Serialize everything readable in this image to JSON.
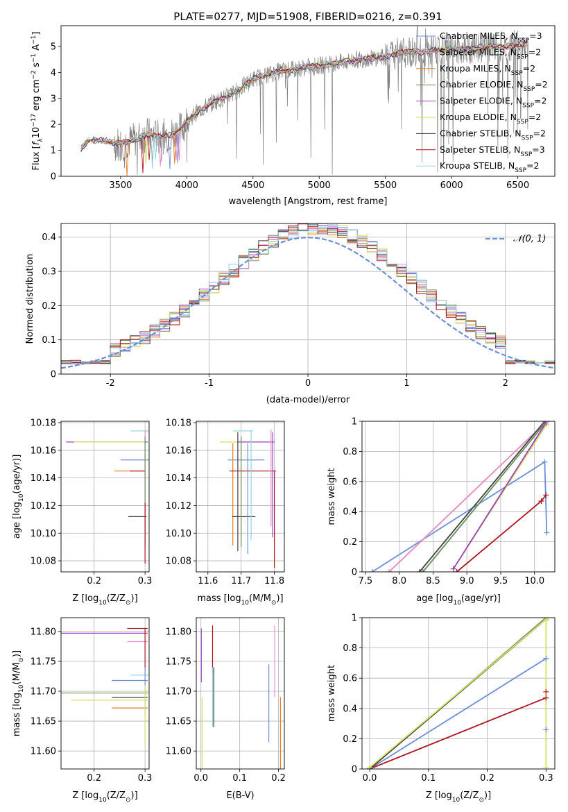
{
  "figure": {
    "title": "PLATE=0277, MJD=51908, FIBERID=0216, z=0.391"
  },
  "colors": {
    "Chabrier MILES": "#6a8fd6",
    "Salpeter MILES": "#e88fcf",
    "Kroupa MILES": "#e87d1e",
    "Chabrier ELODIE": "#6b8f5a",
    "Salpeter ELODIE": "#9b3fc4",
    "Kroupa ELODIE": "#d4e25a",
    "Chabrier STELIB": "#404040",
    "Salpeter STELIB": "#b0141c",
    "Kroupa STELIB": "#8fd6e2",
    "data": "#808080",
    "normal": "#6a8fd6"
  },
  "chart_data": [
    {
      "id": "spectrum",
      "type": "line",
      "title": "PLATE=0277, MJD=51908, FIBERID=0216, z=0.391",
      "xlabel": "wavelength [Angstrom, rest frame]",
      "ylabel_parts": [
        "Flux [",
        "f",
        "λ",
        "10",
        "−17",
        " erg cm",
        "−2",
        " s",
        "−1",
        " A",
        "−1",
        "]"
      ],
      "xlim": [
        3050,
        6780
      ],
      "ylim": [
        0,
        5.8
      ],
      "xticks": [
        3500,
        4000,
        4500,
        5000,
        5500,
        6000,
        6500
      ],
      "yticks": [
        0,
        1,
        2,
        3,
        4,
        5
      ],
      "grid": false,
      "legend": "top-right",
      "legend_entries": [
        {
          "label": "Chabrier MILES, N",
          "sub": "SSP",
          "suffix": "=3"
        },
        {
          "label": "Salpeter MILES, N",
          "sub": "SSP",
          "suffix": "=2"
        },
        {
          "label": "Kroupa MILES, N",
          "sub": "SSP",
          "suffix": "=2"
        },
        {
          "label": "Chabrier ELODIE, N",
          "sub": "SSP",
          "suffix": "=2"
        },
        {
          "label": "Salpeter ELODIE, N",
          "sub": "SSP",
          "suffix": "=2"
        },
        {
          "label": "Kroupa ELODIE, N",
          "sub": "SSP",
          "suffix": "=2"
        },
        {
          "label": "Chabrier STELIB, N",
          "sub": "SSP",
          "suffix": "=2"
        },
        {
          "label": "Salpeter STELIB, N",
          "sub": "SSP",
          "suffix": "=3"
        },
        {
          "label": "Kroupa STELIB, N",
          "sub": "SSP",
          "suffix": "=2"
        }
      ],
      "data_range": [
        3200,
        6580
      ],
      "continuum": [
        [
          3200,
          1.05
        ],
        [
          3250,
          1.35
        ],
        [
          3300,
          1.4
        ],
        [
          3400,
          1.35
        ],
        [
          3500,
          1.25
        ],
        [
          3600,
          1.4
        ],
        [
          3700,
          1.6
        ],
        [
          3800,
          1.5
        ],
        [
          3900,
          1.65
        ],
        [
          3950,
          1.8
        ],
        [
          4000,
          2.15
        ],
        [
          4100,
          2.55
        ],
        [
          4200,
          2.85
        ],
        [
          4300,
          3.05
        ],
        [
          4400,
          3.35
        ],
        [
          4500,
          3.75
        ],
        [
          4600,
          3.9
        ],
        [
          4700,
          4.05
        ],
        [
          4800,
          4.1
        ],
        [
          4900,
          4.2
        ],
        [
          5000,
          4.25
        ],
        [
          5100,
          4.35
        ],
        [
          5200,
          4.4
        ],
        [
          5300,
          4.5
        ],
        [
          5400,
          4.55
        ],
        [
          5500,
          4.6
        ],
        [
          5600,
          4.75
        ],
        [
          5700,
          4.8
        ],
        [
          5800,
          4.8
        ],
        [
          5900,
          4.85
        ],
        [
          6000,
          4.9
        ],
        [
          6100,
          4.9
        ],
        [
          6200,
          4.95
        ],
        [
          6300,
          5.0
        ],
        [
          6400,
          5.0
        ],
        [
          6500,
          5.05
        ],
        [
          6580,
          5.05
        ]
      ]
    },
    {
      "id": "residuals",
      "type": "histogram",
      "xlabel": "(data-model)/error",
      "ylabel": "Normed distribution",
      "xlim": [
        -2.5,
        2.5
      ],
      "ylim": [
        0,
        0.44
      ],
      "xticks": [
        -2,
        -1,
        0,
        1,
        2
      ],
      "yticks": [
        0.0,
        0.1,
        0.2,
        0.3,
        0.4
      ],
      "grid": true,
      "legend": "top-right",
      "legend_label": "𝒩(0, 1)",
      "bin_width": 0.1
    },
    {
      "id": "Z-age",
      "type": "errorbar",
      "xlabel_parts": [
        "Z [log",
        "10",
        "(Z/Z",
        "⊙",
        ")]"
      ],
      "ylabel_parts": [
        "age  [log",
        "10",
        "(age/yr)]"
      ],
      "xlim": [
        0.135,
        0.308
      ],
      "ylim": [
        10.072,
        10.181
      ],
      "xticks": [
        0.2,
        0.3
      ],
      "yticks": [
        10.08,
        10.1,
        10.12,
        10.14,
        10.16,
        10.18
      ],
      "yfmt": 2,
      "grid": true,
      "points": [
        {
          "series": "Salpeter ELODIE",
          "x": 0.225,
          "xerr": 0.08,
          "y": 10.166,
          "yerr": 0
        },
        {
          "series": "Kroupa ELODIE",
          "x": 0.23,
          "xerr": 0.07,
          "y": 10.166,
          "yerr": 0
        },
        {
          "series": "Kroupa STELIB",
          "x": 0.29,
          "xerr": 0.018,
          "y": 10.174,
          "yerr": 0
        },
        {
          "series": "Chabrier MILES",
          "x": 0.28,
          "xerr": 0.028,
          "y": 10.153,
          "yerr": 0
        },
        {
          "series": "Kroupa MILES",
          "x": 0.27,
          "xerr": 0.03,
          "y": 10.145,
          "yerr": 0
        },
        {
          "series": "Salpeter STELIB",
          "x": 0.285,
          "xerr": 0.015,
          "y": 10.145,
          "yerr": 0
        },
        {
          "series": "Chabrier STELIB",
          "x": 0.285,
          "xerr": 0.018,
          "y": 10.112,
          "yerr": 0
        },
        {
          "series": "Salpeter MILES",
          "x": 0.3,
          "xerr": 0,
          "y": 10.14,
          "yerr": 0.035
        },
        {
          "series": "Chabrier ELODIE",
          "x": 0.3,
          "xerr": 0,
          "y": 10.13,
          "yerr": 0.04
        },
        {
          "series": "Salpeter STELIB",
          "x": 0.3,
          "xerr": 0,
          "y": 10.1,
          "yerr": 0.022
        }
      ]
    },
    {
      "id": "mass-age",
      "type": "errorbar",
      "xlabel_parts": [
        "mass [log",
        "10",
        "(M/M",
        "⊙",
        ")]"
      ],
      "ylabel_parts": [],
      "xlim": [
        11.565,
        11.83
      ],
      "ylim": [
        10.072,
        10.181
      ],
      "xticks": [
        11.6,
        11.7,
        11.8
      ],
      "yticks": [
        10.08,
        10.1,
        10.12,
        10.14,
        10.16,
        10.18
      ],
      "yfmt": 2,
      "grid": true,
      "points": [
        {
          "series": "Kroupa ELODIE",
          "x": 11.685,
          "xerr": 0.05,
          "y": 10.166,
          "yerr": 0
        },
        {
          "series": "Salpeter ELODIE",
          "x": 11.745,
          "xerr": 0.055,
          "y": 10.166,
          "yerr": 0
        },
        {
          "series": "Kroupa STELIB",
          "x": 11.705,
          "xerr": 0.03,
          "y": 10.174,
          "yerr": 0
        },
        {
          "series": "Chabrier MILES",
          "x": 11.715,
          "xerr": 0.055,
          "y": 10.153,
          "yerr": 0
        },
        {
          "series": "Kroupa MILES",
          "x": 11.675,
          "xerr": 0,
          "y": 10.128,
          "yerr": 0.037
        },
        {
          "series": "Salpeter STELIB",
          "x": 11.735,
          "xerr": 0.07,
          "y": 10.145,
          "yerr": 0
        },
        {
          "series": "Chabrier STELIB",
          "x": 11.708,
          "xerr": 0.035,
          "y": 10.112,
          "yerr": 0
        },
        {
          "series": "Chabrier STELIB",
          "x": 11.69,
          "xerr": 0,
          "y": 10.13,
          "yerr": 0.043
        },
        {
          "series": "Chabrier ELODIE",
          "x": 11.7,
          "xerr": 0,
          "y": 10.13,
          "yerr": 0.04
        },
        {
          "series": "Chabrier MILES",
          "x": 11.72,
          "xerr": 0,
          "y": 10.125,
          "yerr": 0.04
        },
        {
          "series": "Kroupa STELIB",
          "x": 11.73,
          "xerr": 0,
          "y": 10.135,
          "yerr": 0.04
        },
        {
          "series": "Salpeter MILES",
          "x": 11.79,
          "xerr": 0,
          "y": 10.14,
          "yerr": 0.035
        },
        {
          "series": "Salpeter ELODIE",
          "x": 11.795,
          "xerr": 0,
          "y": 10.135,
          "yerr": 0.038
        },
        {
          "series": "Salpeter STELIB",
          "x": 11.8,
          "xerr": 0,
          "y": 10.11,
          "yerr": 0.035
        }
      ]
    },
    {
      "id": "age-weight",
      "type": "line",
      "xlabel_parts": [
        "age  [log",
        "10",
        "(age/yr)]"
      ],
      "ylabel": "mass weight",
      "xlim": [
        7.45,
        10.3
      ],
      "ylim": [
        0,
        1
      ],
      "xticks": [
        7.5,
        8.0,
        8.5,
        9.0,
        9.5,
        10.0
      ],
      "yticks": [
        0.0,
        0.2,
        0.4,
        0.6,
        0.8,
        1.0
      ],
      "xfmt": 1,
      "grid": true,
      "lines": [
        {
          "series": "Chabrier MILES",
          "points": [
            [
              7.6,
              0
            ],
            [
              10.15,
              0.73
            ],
            [
              10.18,
              0.26
            ]
          ]
        },
        {
          "series": "Kroupa MILES",
          "points": [
            [
              7.85,
              0
            ],
            [
              10.18,
              1.0
            ]
          ]
        },
        {
          "series": "Salpeter MILES",
          "points": [
            [
              7.85,
              0
            ],
            [
              10.18,
              1.0
            ]
          ]
        },
        {
          "series": "Chabrier STELIB",
          "points": [
            [
              8.3,
              0
            ],
            [
              10.15,
              1.0
            ]
          ]
        },
        {
          "series": "Kroupa STELIB",
          "points": [
            [
              8.35,
              0
            ],
            [
              10.18,
              1.0
            ]
          ]
        },
        {
          "series": "Chabrier ELODIE",
          "points": [
            [
              8.35,
              0
            ],
            [
              10.18,
              1.0
            ]
          ]
        },
        {
          "series": "Salpeter STELIB",
          "points": [
            [
              8.85,
              0
            ],
            [
              10.1,
              0.47
            ],
            [
              10.17,
              0.51
            ]
          ]
        },
        {
          "series": "Kroupa ELODIE",
          "points": [
            [
              8.8,
              0.02
            ],
            [
              10.18,
              0.98
            ]
          ]
        },
        {
          "series": "Salpeter ELODIE",
          "points": [
            [
              8.8,
              0.02
            ],
            [
              10.17,
              0.99
            ]
          ]
        }
      ]
    },
    {
      "id": "Z-mass",
      "type": "errorbar",
      "xlabel_parts": [
        "Z [log",
        "10",
        "(Z/Z",
        "⊙",
        ")]"
      ],
      "ylabel_parts": [
        "mass [log",
        "10",
        "(M/M",
        "⊙",
        ")]"
      ],
      "xlim": [
        0.135,
        0.308
      ],
      "ylim": [
        11.57,
        11.823
      ],
      "xticks": [
        0.2,
        0.3
      ],
      "yticks": [
        11.6,
        11.65,
        11.7,
        11.75,
        11.8
      ],
      "yfmt": 2,
      "grid": true,
      "points": [
        {
          "series": "Salpeter ELODIE",
          "x": 0.22,
          "xerr": 0.085,
          "y": 11.797,
          "yerr": 0
        },
        {
          "series": "Salpeter STELIB",
          "x": 0.285,
          "xerr": 0.02,
          "y": 11.805,
          "yerr": 0
        },
        {
          "series": "Salpeter MILES",
          "x": 0.285,
          "xerr": 0.02,
          "y": 11.783,
          "yerr": 0
        },
        {
          "series": "Kroupa STELIB",
          "x": 0.29,
          "xerr": 0.018,
          "y": 11.727,
          "yerr": 0
        },
        {
          "series": "Chabrier MILES",
          "x": 0.27,
          "xerr": 0.035,
          "y": 11.718,
          "yerr": 0
        },
        {
          "series": "Chabrier ELODIE",
          "x": 0.22,
          "xerr": 0.085,
          "y": 11.697,
          "yerr": 0
        },
        {
          "series": "Chabrier STELIB",
          "x": 0.27,
          "xerr": 0.035,
          "y": 11.69,
          "yerr": 0
        },
        {
          "series": "Kroupa ELODIE",
          "x": 0.23,
          "xerr": 0.075,
          "y": 11.685,
          "yerr": 0
        },
        {
          "series": "Kroupa MILES",
          "x": 0.27,
          "xerr": 0.035,
          "y": 11.672,
          "yerr": 0
        },
        {
          "series": "Salpeter STELIB",
          "x": 0.3,
          "xerr": 0,
          "y": 11.77,
          "yerr": 0.035
        },
        {
          "series": "Chabrier MILES",
          "x": 0.3,
          "xerr": 0,
          "y": 11.7,
          "yerr": 0.04
        },
        {
          "series": "Kroupa ELODIE",
          "x": 0.3,
          "xerr": 0,
          "y": 11.66,
          "yerr": 0.05
        }
      ]
    },
    {
      "id": "ebv-mass",
      "type": "errorbar",
      "xlabel": "E(B-V)",
      "ylabel_parts": [],
      "xlim": [
        -0.012,
        0.215
      ],
      "ylim": [
        11.57,
        11.823
      ],
      "xticks": [
        0.0,
        0.1,
        0.2
      ],
      "yticks": [
        11.6,
        11.65,
        11.7,
        11.75,
        11.8
      ],
      "xfmt": 1,
      "yfmt": 2,
      "grid": true,
      "points": [
        {
          "series": "Salpeter ELODIE",
          "x": 0.001,
          "xerr": 0,
          "y": 11.76,
          "yerr": 0.045
        },
        {
          "series": "Kroupa ELODIE",
          "x": 0.003,
          "xerr": 0,
          "y": 11.63,
          "yerr": 0.06
        },
        {
          "series": "Salpeter STELIB",
          "x": 0.03,
          "xerr": 0,
          "y": 11.77,
          "yerr": 0.04
        },
        {
          "series": "Kroupa STELIB",
          "x": 0.03,
          "xerr": 0,
          "y": 11.69,
          "yerr": 0.05
        },
        {
          "series": "Chabrier STELIB",
          "x": 0.033,
          "xerr": 0,
          "y": 11.69,
          "yerr": 0.05
        },
        {
          "series": "Chabrier MILES",
          "x": 0.175,
          "xerr": 0,
          "y": 11.68,
          "yerr": 0.065
        },
        {
          "series": "Salpeter MILES",
          "x": 0.19,
          "xerr": 0,
          "y": 11.75,
          "yerr": 0.06
        },
        {
          "series": "Kroupa MILES",
          "x": 0.205,
          "xerr": 0,
          "y": 11.63,
          "yerr": 0.06
        }
      ]
    },
    {
      "id": "Z-weight",
      "type": "line",
      "xlabel_parts": [
        "Z [log",
        "10",
        "(Z/Z",
        "⊙",
        ")]"
      ],
      "ylabel": "mass weight",
      "xlim": [
        -0.013,
        0.315
      ],
      "ylim": [
        0,
        1
      ],
      "xticks": [
        0.0,
        0.1,
        0.2,
        0.3
      ],
      "yticks": [
        0.0,
        0.2,
        0.4,
        0.6,
        0.8,
        1.0
      ],
      "xfmt": 1,
      "grid": true,
      "lines": [
        {
          "series": "Chabrier MILES",
          "points": [
            [
              0,
              0
            ],
            [
              0.3,
              0.73
            ]
          ]
        },
        {
          "series": "Salpeter STELIB",
          "points": [
            [
              0,
              0
            ],
            [
              0.3,
              0.47
            ]
          ]
        },
        {
          "series": "Kroupa STELIB",
          "points": [
            [
              0,
              0
            ],
            [
              0.3,
              1.0
            ]
          ]
        },
        {
          "series": "Chabrier ELODIE",
          "points": [
            [
              0,
              0
            ],
            [
              0.3,
              1.0
            ]
          ]
        },
        {
          "series": "Chabrier STELIB",
          "points": [
            [
              0,
              0
            ],
            [
              0.3,
              0.99
            ]
          ]
        },
        {
          "series": "Kroupa ELODIE",
          "points": [
            [
              0,
              0.01
            ],
            [
              0.3,
              0.99
            ],
            [
              0.3,
              0.01
            ]
          ]
        }
      ],
      "markers": [
        {
          "series": "Salpeter STELIB",
          "x": 0.3,
          "y": 0.51
        },
        {
          "series": "Salpeter STELIB",
          "x": 0.3,
          "y": 0.47
        },
        {
          "series": "Chabrier MILES",
          "x": 0.3,
          "y": 0.73
        },
        {
          "series": "Chabrier MILES",
          "x": 0.3,
          "y": 0.26
        },
        {
          "series": "Kroupa ELODIE",
          "x": 0.3,
          "y": 0.98
        }
      ]
    }
  ]
}
